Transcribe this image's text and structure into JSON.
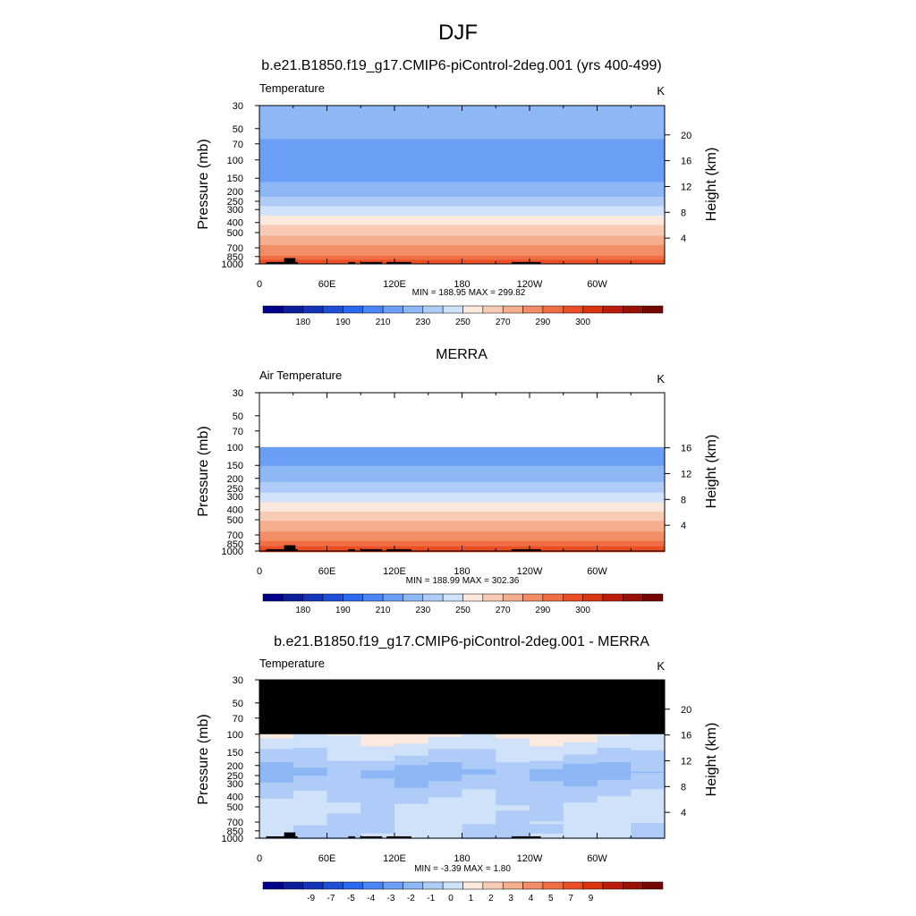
{
  "figure": {
    "title": "DJF"
  },
  "chart_data": [
    {
      "type": "heatmap",
      "title": "b.e21.B1850.f19_g17.CMIP6-piControl-2deg.001 (yrs 400-499)",
      "left_label": "Temperature",
      "units": "K",
      "ylabel": "Pressure (mb)",
      "ylabel_right": "Height (km)",
      "x_ticks": [
        "0",
        "60E",
        "120E",
        "180",
        "120W",
        "60W"
      ],
      "x_tick_values": [
        0,
        60,
        120,
        180,
        240,
        300
      ],
      "xlim": [
        0,
        360
      ],
      "y_ticks": [
        30,
        50,
        70,
        100,
        150,
        200,
        250,
        300,
        400,
        500,
        700,
        850,
        1000
      ],
      "ylim": [
        1000,
        30
      ],
      "y_scale": "log",
      "height_ticks": [
        20,
        16,
        12,
        8,
        4
      ],
      "stats": "MIN = 188.95  MAX = 299.82",
      "colorbar_labels": [
        "180",
        "190",
        "210",
        "230",
        "250",
        "270",
        "290",
        "300"
      ],
      "palette": [
        "#00008b",
        "#0a1e9b",
        "#1433b8",
        "#1e4fd9",
        "#2a69f0",
        "#4a86f5",
        "#6b9ff5",
        "#8db7f5",
        "#afccf7",
        "#cfe2f9",
        "#fbe9dd",
        "#f8ccb4",
        "#f5ae8d",
        "#f28e66",
        "#ef6e44",
        "#e94e24",
        "#d93410",
        "#bb1d0a",
        "#981006",
        "#750600"
      ],
      "temperature_profile": [
        {
          "p": 30,
          "value": 218
        },
        {
          "p": 50,
          "value": 214
        },
        {
          "p": 70,
          "value": 208
        },
        {
          "p": 100,
          "value": 203
        },
        {
          "p": 150,
          "value": 208
        },
        {
          "p": 200,
          "value": 216
        },
        {
          "p": 250,
          "value": 225
        },
        {
          "p": 300,
          "value": 234
        },
        {
          "p": 400,
          "value": 248
        },
        {
          "p": 500,
          "value": 258
        },
        {
          "p": 700,
          "value": 273
        },
        {
          "p": 850,
          "value": 282
        },
        {
          "p": 1000,
          "value": 290
        }
      ]
    },
    {
      "type": "heatmap",
      "title": "MERRA",
      "left_label": "Air Temperature",
      "units": "K",
      "ylabel": "Pressure (mb)",
      "ylabel_right": "Height (km)",
      "x_ticks": [
        "0",
        "60E",
        "120E",
        "180",
        "120W",
        "60W"
      ],
      "x_tick_values": [
        0,
        60,
        120,
        180,
        240,
        300
      ],
      "xlim": [
        0,
        360
      ],
      "y_ticks": [
        30,
        50,
        70,
        100,
        150,
        200,
        250,
        300,
        400,
        500,
        700,
        850,
        1000
      ],
      "ylim": [
        1000,
        30
      ],
      "y_scale": "log",
      "height_ticks": [
        16,
        12,
        8,
        4
      ],
      "data_top_p": 100,
      "stats": "MIN = 188.99  MAX = 302.36",
      "colorbar_labels": [
        "180",
        "190",
        "210",
        "230",
        "250",
        "270",
        "290",
        "300"
      ],
      "temperature_profile": [
        {
          "p": 100,
          "value": 205
        },
        {
          "p": 150,
          "value": 210
        },
        {
          "p": 200,
          "value": 217
        },
        {
          "p": 250,
          "value": 226
        },
        {
          "p": 300,
          "value": 235
        },
        {
          "p": 400,
          "value": 249
        },
        {
          "p": 500,
          "value": 259
        },
        {
          "p": 700,
          "value": 274
        },
        {
          "p": 850,
          "value": 283
        },
        {
          "p": 1000,
          "value": 292
        }
      ]
    },
    {
      "type": "heatmap",
      "title": "b.e21.B1850.f19_g17.CMIP6-piControl-2deg.001 - MERRA",
      "left_label": "Temperature",
      "units": "K",
      "ylabel": "Pressure (mb)",
      "ylabel_right": "Height (km)",
      "x_ticks": [
        "0",
        "60E",
        "120E",
        "180",
        "120W",
        "60W"
      ],
      "x_tick_values": [
        0,
        60,
        120,
        180,
        240,
        300
      ],
      "xlim": [
        0,
        360
      ],
      "y_ticks": [
        30,
        50,
        70,
        100,
        150,
        200,
        250,
        300,
        400,
        500,
        700,
        850,
        1000
      ],
      "ylim": [
        1000,
        30
      ],
      "y_scale": "log",
      "height_ticks": [
        20,
        16,
        12,
        8,
        4
      ],
      "missing_above_p": 100,
      "stats": "MIN =  -3.39  MAX =   1.80",
      "colorbar_labels": [
        "-9",
        "-7",
        "-5",
        "-4",
        "-3",
        "-2",
        "-1",
        "0",
        "1",
        "2",
        "3",
        "4",
        "5",
        "7",
        "9"
      ],
      "palette": [
        "#00008b",
        "#0a1e9b",
        "#1433b8",
        "#1e4fd9",
        "#2a69f0",
        "#4a86f5",
        "#6b9ff5",
        "#8db7f5",
        "#afccf7",
        "#cfe2f9",
        "#fbe9dd",
        "#f8ccb4",
        "#f5ae8d",
        "#f28e66",
        "#ef6e44",
        "#e94e24",
        "#d93410",
        "#bb1d0a",
        "#981006",
        "#750600"
      ],
      "difference_profile": [
        {
          "p": 100,
          "value": 0.3
        },
        {
          "p": 130,
          "value": -0.5
        },
        {
          "p": 170,
          "value": -1.2
        },
        {
          "p": 230,
          "value": -2.4
        },
        {
          "p": 300,
          "value": -1.6
        },
        {
          "p": 400,
          "value": -1.3
        },
        {
          "p": 500,
          "value": -0.6
        },
        {
          "p": 700,
          "value": -0.8
        },
        {
          "p": 850,
          "value": -1.2
        },
        {
          "p": 1000,
          "value": -0.7
        }
      ]
    }
  ]
}
